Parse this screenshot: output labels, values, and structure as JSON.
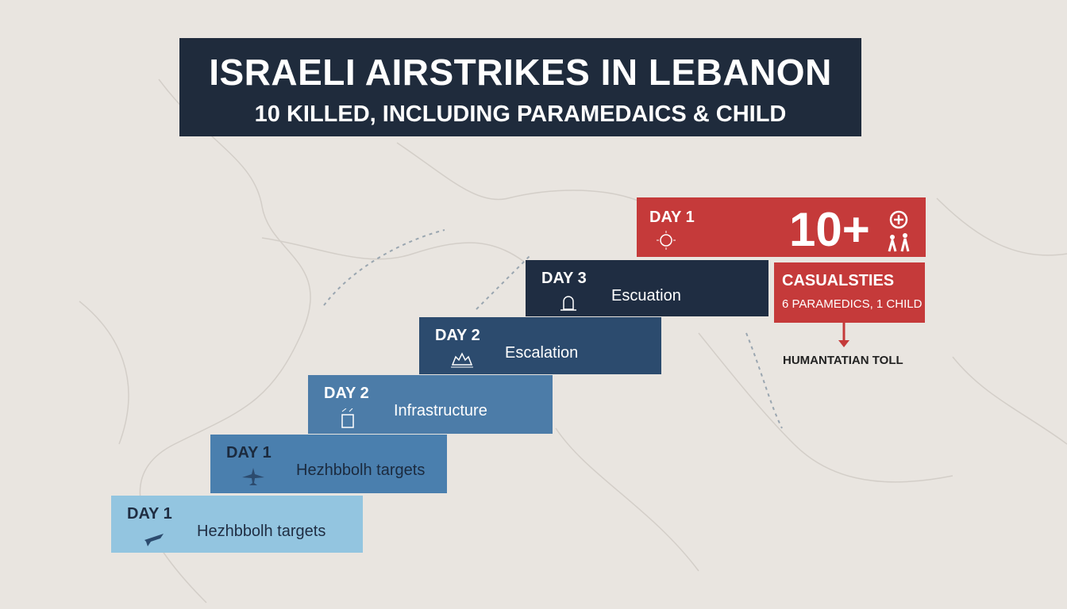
{
  "header": {
    "title": "ISRAELI AIRSTRIKES IN LEBANON",
    "subtitle": "10 KILLED, INCLUDING PARAMEDAICS & CHILD"
  },
  "steps": [
    {
      "day": "DAY 1",
      "label": "Hezhbbolh targets"
    },
    {
      "day": "DAY 1",
      "label": "Hezhbbolh targets"
    },
    {
      "day": "DAY 2",
      "label": "Infrastructure"
    },
    {
      "day": "DAY 2",
      "label": "Escalation"
    },
    {
      "day": "DAY 3",
      "label": "Escuation"
    }
  ],
  "summary": {
    "day": "DAY 1",
    "count": "10+"
  },
  "casualties": {
    "title": "CASUALSTIES",
    "detail": "6 PARAMEDICS, 1 CHILD",
    "caption": "HUMANTATIAN TOLL"
  }
}
